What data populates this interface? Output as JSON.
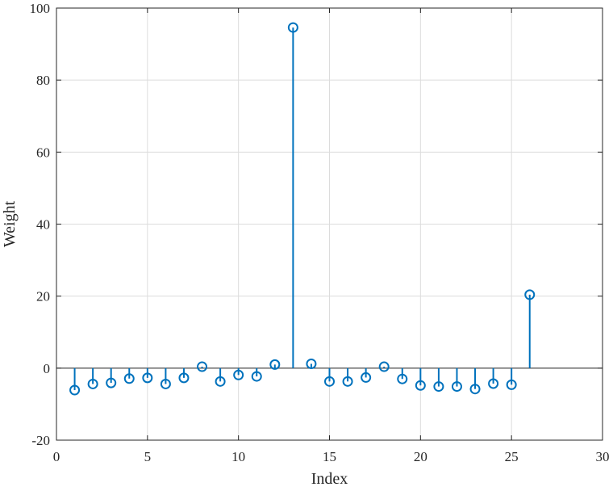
{
  "chart_data": {
    "type": "stem",
    "xlabel": "Index",
    "ylabel": "Weight",
    "xlim": [
      0,
      30
    ],
    "ylim": [
      -20,
      100
    ],
    "xticks": [
      0,
      5,
      10,
      15,
      20,
      25,
      30
    ],
    "yticks": [
      -20,
      0,
      20,
      40,
      60,
      80,
      100
    ],
    "grid": true,
    "color": "#0072BD",
    "series": [
      {
        "x": [
          1,
          2,
          3,
          4,
          5,
          6,
          7,
          8,
          9,
          10,
          11,
          12,
          13,
          14,
          15,
          16,
          17,
          18,
          19,
          20,
          21,
          22,
          23,
          24,
          25,
          26
        ],
        "values": [
          -6.1,
          -4.4,
          -4.1,
          -2.9,
          -2.7,
          -4.4,
          -2.7,
          0.4,
          -3.7,
          -1.9,
          -2.3,
          1.0,
          94.6,
          1.2,
          -3.7,
          -3.7,
          -2.6,
          0.4,
          -3.0,
          -4.8,
          -5.1,
          -5.1,
          -5.8,
          -4.3,
          -4.6,
          20.4
        ]
      }
    ]
  }
}
